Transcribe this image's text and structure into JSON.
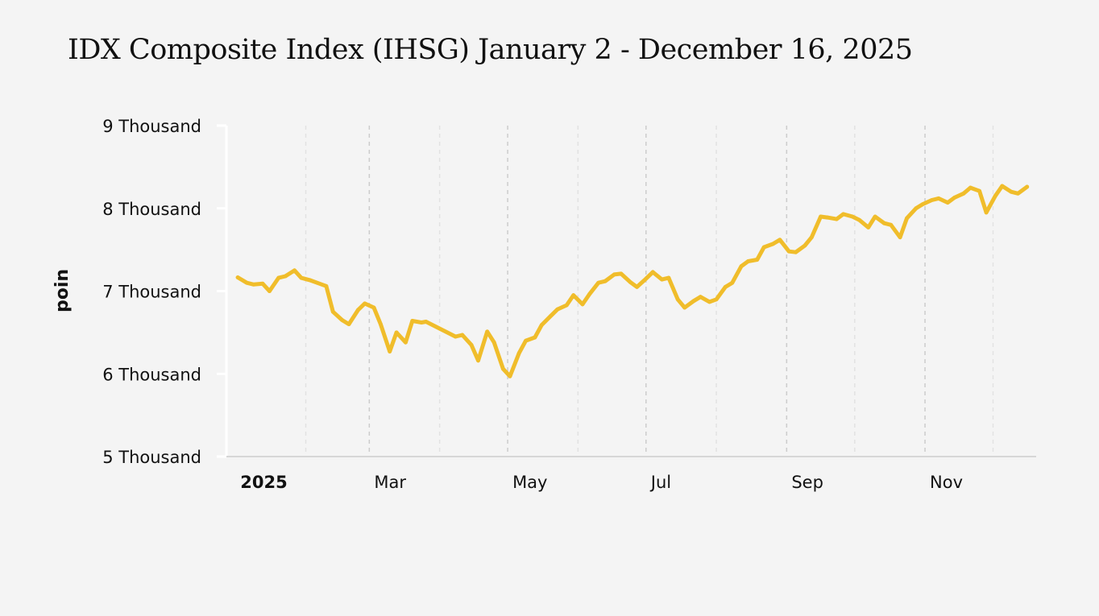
{
  "chart_data": {
    "type": "line",
    "title": "IDX Composite Index (IHSG) January 2 - December 16, 2025",
    "ylabel": "poin",
    "xlabel": "",
    "ylim": [
      5000,
      9000
    ],
    "xlim": [
      "2024-12-28",
      "2025-12-20"
    ],
    "grid": true,
    "legend": "none",
    "y_ticks": [
      {
        "value": 5000,
        "label": "5 Thousand"
      },
      {
        "value": 6000,
        "label": "6 Thousand"
      },
      {
        "value": 7000,
        "label": "7 Thousand"
      },
      {
        "value": 8000,
        "label": "8 Thousand"
      },
      {
        "value": 9000,
        "label": "9 Thousand"
      }
    ],
    "x_ticks": [
      {
        "date": "2025-01-01",
        "label": "2025",
        "bold": true
      },
      {
        "date": "2025-03-01",
        "label": "Mar",
        "bold": false
      },
      {
        "date": "2025-05-01",
        "label": "May",
        "bold": false
      },
      {
        "date": "2025-07-01",
        "label": "Jul",
        "bold": false
      },
      {
        "date": "2025-09-01",
        "label": "Sep",
        "bold": false
      },
      {
        "date": "2025-11-01",
        "label": "Nov",
        "bold": false
      }
    ],
    "x_minor_grid": [
      "2025-02-01",
      "2025-04-01",
      "2025-06-01",
      "2025-08-01",
      "2025-10-01",
      "2025-12-01"
    ],
    "series": [
      {
        "color": "#f0bd2b",
        "x": [
          "2025-01-02",
          "2025-01-06",
          "2025-01-09",
          "2025-01-13",
          "2025-01-16",
          "2025-01-20",
          "2025-01-23",
          "2025-01-27",
          "2025-01-30",
          "2025-02-03",
          "2025-02-06",
          "2025-02-10",
          "2025-02-13",
          "2025-02-17",
          "2025-02-20",
          "2025-02-24",
          "2025-02-27",
          "2025-03-03",
          "2025-03-06",
          "2025-03-10",
          "2025-03-13",
          "2025-03-17",
          "2025-03-20",
          "2025-03-24",
          "2025-03-26",
          "2025-04-08",
          "2025-04-11",
          "2025-04-15",
          "2025-04-18",
          "2025-04-22",
          "2025-04-25",
          "2025-04-29",
          "2025-05-02",
          "2025-05-06",
          "2025-05-09",
          "2025-05-13",
          "2025-05-16",
          "2025-05-20",
          "2025-05-23",
          "2025-05-27",
          "2025-05-30",
          "2025-06-03",
          "2025-06-06",
          "2025-06-10",
          "2025-06-13",
          "2025-06-17",
          "2025-06-20",
          "2025-06-24",
          "2025-06-27",
          "2025-07-01",
          "2025-07-04",
          "2025-07-08",
          "2025-07-11",
          "2025-07-15",
          "2025-07-18",
          "2025-07-22",
          "2025-07-25",
          "2025-07-29",
          "2025-08-01",
          "2025-08-05",
          "2025-08-08",
          "2025-08-12",
          "2025-08-15",
          "2025-08-19",
          "2025-08-22",
          "2025-08-26",
          "2025-08-29",
          "2025-09-02",
          "2025-09-05",
          "2025-09-09",
          "2025-09-12",
          "2025-09-16",
          "2025-09-19",
          "2025-09-23",
          "2025-09-26",
          "2025-09-30",
          "2025-10-03",
          "2025-10-07",
          "2025-10-10",
          "2025-10-14",
          "2025-10-17",
          "2025-10-21",
          "2025-10-24",
          "2025-10-28",
          "2025-10-31",
          "2025-11-04",
          "2025-11-07",
          "2025-11-11",
          "2025-11-14",
          "2025-11-18",
          "2025-11-21",
          "2025-11-25",
          "2025-11-28",
          "2025-12-02",
          "2025-12-05",
          "2025-12-09",
          "2025-12-12",
          "2025-12-16"
        ],
        "y": [
          7165,
          7100,
          7080,
          7090,
          7000,
          7160,
          7180,
          7250,
          7160,
          7130,
          7100,
          7060,
          6750,
          6650,
          6600,
          6770,
          6850,
          6800,
          6600,
          6270,
          6500,
          6380,
          6640,
          6620,
          6630,
          6450,
          6470,
          6350,
          6160,
          6510,
          6380,
          6060,
          5970,
          6250,
          6400,
          6440,
          6590,
          6700,
          6780,
          6830,
          6950,
          6840,
          6960,
          7100,
          7120,
          7200,
          7210,
          7110,
          7050,
          7150,
          7230,
          7140,
          7160,
          6900,
          6800,
          6880,
          6930,
          6870,
          6900,
          7050,
          7100,
          7300,
          7360,
          7380,
          7530,
          7570,
          7620,
          7480,
          7470,
          7550,
          7650,
          7900,
          7890,
          7870,
          7930,
          7900,
          7860,
          7770,
          7900,
          7820,
          7800,
          7650,
          7880,
          8000,
          8050,
          8100,
          8120,
          8070,
          8130,
          8180,
          8250,
          8210,
          7950,
          8150,
          8270,
          8200,
          8180,
          8260
        ]
      }
    ]
  }
}
